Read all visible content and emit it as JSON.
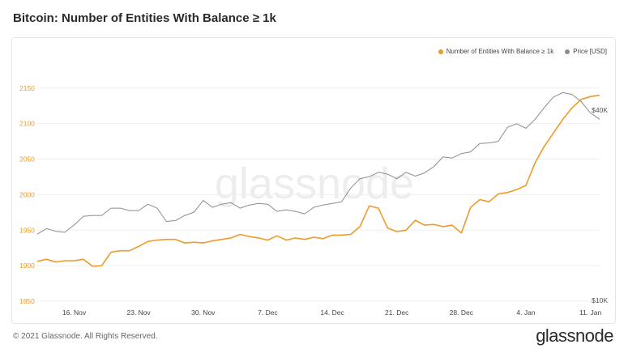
{
  "title": "Bitcoin: Number of Entities With Balance ≥ 1k",
  "footer": {
    "copyright": "© 2021 Glassnode. All Rights Reserved.",
    "logo": "glassnode"
  },
  "watermark": "glassnode",
  "colors": {
    "entities": "#f09a29",
    "price": "#8c8c8c",
    "left_axis_text": "#f09a29",
    "grid": "#efefef"
  },
  "chart_data": {
    "type": "line",
    "legend_position": "top-right",
    "grid": true,
    "x_axis": {
      "tick_labels": [
        "16. Nov",
        "23. Nov",
        "30. Nov",
        "7. Dec",
        "14. Dec",
        "21. Dec",
        "28. Dec",
        "4. Jan",
        "11. Jan"
      ],
      "range": [
        "2020-11-12",
        "2021-01-12"
      ]
    },
    "y_left": {
      "ticks": [
        1850,
        1900,
        1950,
        2000,
        2050,
        2100,
        2150
      ],
      "range": [
        1850,
        2160
      ]
    },
    "y_right": {
      "tick_labels": [
        "$10K",
        "$40K"
      ],
      "scale": "log",
      "range": [
        10000,
        44000
      ]
    },
    "series": [
      {
        "name": "Number of Entities With Balance ≥ 1k",
        "axis": "left",
        "x": [
          "2020-11-12",
          "2020-11-13",
          "2020-11-14",
          "2020-11-15",
          "2020-11-16",
          "2020-11-17",
          "2020-11-18",
          "2020-11-19",
          "2020-11-20",
          "2020-11-21",
          "2020-11-22",
          "2020-11-23",
          "2020-11-24",
          "2020-11-25",
          "2020-11-26",
          "2020-11-27",
          "2020-11-28",
          "2020-11-29",
          "2020-11-30",
          "2020-12-01",
          "2020-12-02",
          "2020-12-03",
          "2020-12-04",
          "2020-12-05",
          "2020-12-06",
          "2020-12-07",
          "2020-12-08",
          "2020-12-09",
          "2020-12-10",
          "2020-12-11",
          "2020-12-12",
          "2020-12-13",
          "2020-12-14",
          "2020-12-15",
          "2020-12-16",
          "2020-12-17",
          "2020-12-18",
          "2020-12-19",
          "2020-12-20",
          "2020-12-21",
          "2020-12-22",
          "2020-12-23",
          "2020-12-24",
          "2020-12-25",
          "2020-12-26",
          "2020-12-27",
          "2020-12-28",
          "2020-12-29",
          "2020-12-30",
          "2020-12-31",
          "2021-01-01",
          "2021-01-02",
          "2021-01-03",
          "2021-01-04",
          "2021-01-05",
          "2021-01-06",
          "2021-01-07",
          "2021-01-08",
          "2021-01-09",
          "2021-01-10",
          "2021-01-11",
          "2021-01-12"
        ],
        "y": [
          1906,
          1909,
          1905,
          1907,
          1907,
          1909,
          1899,
          1900,
          1919,
          1921,
          1921,
          1927,
          1934,
          1936,
          1937,
          1937,
          1932,
          1933,
          1932,
          1935,
          1937,
          1939,
          1944,
          1941,
          1939,
          1936,
          1942,
          1936,
          1939,
          1937,
          1940,
          1938,
          1943,
          1943,
          1944,
          1955,
          1984,
          1981,
          1953,
          1948,
          1950,
          1964,
          1957,
          1958,
          1955,
          1957,
          1946,
          1982,
          1993,
          1990,
          2001,
          2003,
          2007,
          2013,
          2045,
          2068,
          2087,
          2106,
          2122,
          2134,
          2138,
          2140
        ]
      },
      {
        "name": "Price [USD]",
        "axis": "right",
        "x": [
          "2020-11-12",
          "2020-11-13",
          "2020-11-14",
          "2020-11-15",
          "2020-11-16",
          "2020-11-17",
          "2020-11-18",
          "2020-11-19",
          "2020-11-20",
          "2020-11-21",
          "2020-11-22",
          "2020-11-23",
          "2020-11-24",
          "2020-11-25",
          "2020-11-26",
          "2020-11-27",
          "2020-11-28",
          "2020-11-29",
          "2020-11-30",
          "2020-12-01",
          "2020-12-02",
          "2020-12-03",
          "2020-12-04",
          "2020-12-05",
          "2020-12-06",
          "2020-12-07",
          "2020-12-08",
          "2020-12-09",
          "2020-12-10",
          "2020-12-11",
          "2020-12-12",
          "2020-12-13",
          "2020-12-14",
          "2020-12-15",
          "2020-12-16",
          "2020-12-17",
          "2020-12-18",
          "2020-12-19",
          "2020-12-20",
          "2020-12-21",
          "2020-12-22",
          "2020-12-23",
          "2020-12-24",
          "2020-12-25",
          "2020-12-26",
          "2020-12-27",
          "2020-12-28",
          "2020-12-29",
          "2020-12-30",
          "2020-12-31",
          "2021-01-01",
          "2021-01-02",
          "2021-01-03",
          "2021-01-04",
          "2021-01-05",
          "2021-01-06",
          "2021-01-07",
          "2021-01-08",
          "2021-01-09",
          "2021-01-10",
          "2021-01-11",
          "2021-01-12"
        ],
        "y": [
          15700,
          16300,
          16000,
          15900,
          16700,
          17700,
          17800,
          17800,
          18700,
          18700,
          18400,
          18400,
          19200,
          18700,
          17100,
          17200,
          17800,
          18200,
          19700,
          18800,
          19200,
          19400,
          18700,
          19100,
          19300,
          19200,
          18300,
          18500,
          18300,
          18000,
          18800,
          19100,
          19300,
          19500,
          21400,
          22800,
          23100,
          23800,
          23500,
          22800,
          23800,
          23200,
          23700,
          24700,
          26400,
          26200,
          27000,
          27300,
          28900,
          29000,
          29300,
          32200,
          33000,
          32000,
          34000,
          36800,
          39500,
          40700,
          40200,
          38300,
          35500,
          34000
        ]
      }
    ]
  }
}
